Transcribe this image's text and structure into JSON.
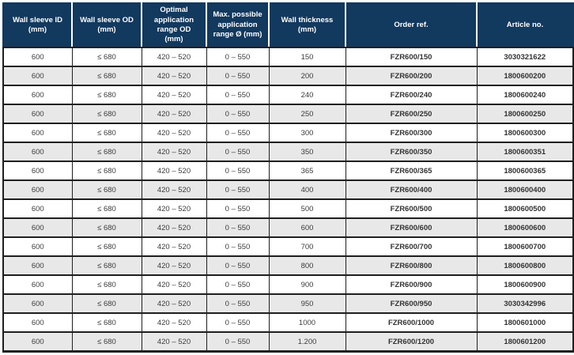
{
  "colors": {
    "header_bg": "#12395E",
    "header_text": "#FFFFFF",
    "row_alt": "#E8E8E8",
    "row_bg": "#FFFFFF",
    "border": "#1F1F1F",
    "cell_text": "#3C3C3C",
    "bold_text": "#333333"
  },
  "table": {
    "columns": [
      "Wall sleeve ID\n(mm)",
      "Wall sleeve OD\n(mm)",
      "Optimal\napplication\nrange OD\n(mm)",
      "Max. possible\napplication\nrange Ø (mm)",
      "Wall thickness\n(mm)",
      "Order ref.",
      "Article no."
    ],
    "rows": [
      [
        "600",
        "≤ 680",
        "420 – 520",
        "0 – 550",
        "150",
        "FZR600/150",
        "3030321622"
      ],
      [
        "600",
        "≤ 680",
        "420 – 520",
        "0 – 550",
        "200",
        "FZR600/200",
        "1800600200"
      ],
      [
        "600",
        "≤ 680",
        "420 – 520",
        "0 – 550",
        "240",
        "FZR600/240",
        "1800600240"
      ],
      [
        "600",
        "≤ 680",
        "420 – 520",
        "0 – 550",
        "250",
        "FZR600/250",
        "1800600250"
      ],
      [
        "600",
        "≤ 680",
        "420 – 520",
        "0 – 550",
        "300",
        "FZR600/300",
        "1800600300"
      ],
      [
        "600",
        "≤ 680",
        "420 – 520",
        "0 – 550",
        "350",
        "FZR600/350",
        "1800600351"
      ],
      [
        "600",
        "≤ 680",
        "420 – 520",
        "0 – 550",
        "365",
        "FZR600/365",
        "1800600365"
      ],
      [
        "600",
        "≤ 680",
        "420 – 520",
        "0 – 550",
        "400",
        "FZR600/400",
        "1800600400"
      ],
      [
        "600",
        "≤ 680",
        "420 – 520",
        "0 – 550",
        "500",
        "FZR600/500",
        "1800600500"
      ],
      [
        "600",
        "≤ 680",
        "420 – 520",
        "0 – 550",
        "600",
        "FZR600/600",
        "1800600600"
      ],
      [
        "600",
        "≤ 680",
        "420 – 520",
        "0 – 550",
        "700",
        "FZR600/700",
        "1800600700"
      ],
      [
        "600",
        "≤ 680",
        "420 – 520",
        "0 – 550",
        "800",
        "FZR600/800",
        "1800600800"
      ],
      [
        "600",
        "≤ 680",
        "420 – 520",
        "0 – 550",
        "900",
        "FZR600/900",
        "1800600900"
      ],
      [
        "600",
        "≤ 680",
        "420 – 520",
        "0 – 550",
        "950",
        "FZR600/950",
        "3030342996"
      ],
      [
        "600",
        "≤ 680",
        "420 – 520",
        "0 – 550",
        "1000",
        "FZR600/1000",
        "1800601000"
      ],
      [
        "600",
        "≤ 680",
        "420 – 520",
        "0 – 550",
        "1.200",
        "FZR600/1200",
        "1800601200"
      ]
    ]
  }
}
